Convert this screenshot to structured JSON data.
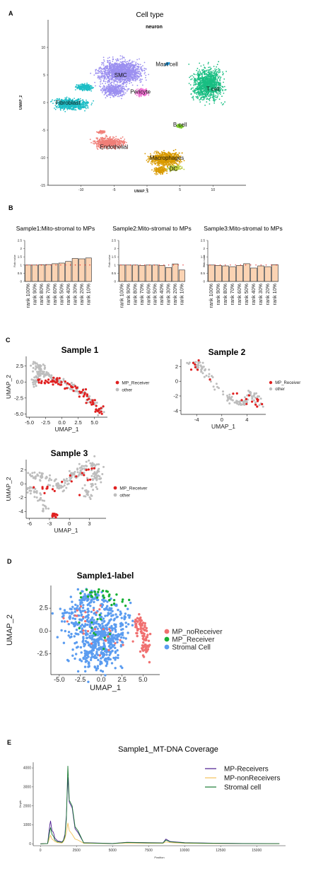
{
  "panels": {
    "a": "A",
    "b": "B",
    "c": "C",
    "d": "D",
    "e": "E"
  },
  "colors": {
    "smc": "#9b8ff0",
    "fibroblast": "#1ebec6",
    "tcell": "#19be82",
    "endothelial": "#f07f78",
    "macrophages": "#d99a00",
    "pericyte": "#ee6fd0",
    "mastcell": "#1e8fcf",
    "bcell": "#7bc92a",
    "dc": "#b7c93a",
    "bar": "#fbd3b3",
    "red": "#e02020",
    "grey": "#bdbdbd",
    "noreceiver": "#f07070",
    "receiver": "#16b034",
    "stromal": "#5b9cf0",
    "mp_receivers": "#4b1a90",
    "mp_noreceivers": "#f2c05a",
    "stromal_cell": "#1a7a33"
  },
  "chart_data": [
    {
      "type": "scatter",
      "title": "Cell type",
      "subtitle": "neuron",
      "xlabel": "UMAP_1",
      "ylabel": "UMAP_2",
      "xlim": [
        -15,
        15
      ],
      "ylim": [
        -15,
        15
      ],
      "xticks": [
        -10,
        -5,
        0,
        5,
        10
      ],
      "yticks": [
        10,
        5,
        0,
        -5,
        -10,
        -15
      ],
      "clusters": [
        {
          "name": "SMC",
          "x": -4,
          "y": 5
        },
        {
          "name": "Fibroblast",
          "x": -12,
          "y": 0
        },
        {
          "name": "T cell",
          "x": 10,
          "y": 2.5
        },
        {
          "name": "Pericyte",
          "x": -1,
          "y": 2
        },
        {
          "name": "Mast cell",
          "x": 3,
          "y": 7
        },
        {
          "name": "B cell",
          "x": 5,
          "y": -4
        },
        {
          "name": "Endothelial",
          "x": -5,
          "y": -8
        },
        {
          "name": "Macrophages",
          "x": 3,
          "y": -10
        },
        {
          "name": "DC",
          "x": 4,
          "y": -12
        }
      ]
    },
    {
      "type": "bar",
      "title": "Sample1:Mito-stromal to MPs",
      "ylabel": "Ratio value",
      "ylim": [
        0,
        2.5
      ],
      "yticks": [
        0,
        0.5,
        1,
        1.5,
        2,
        2.5
      ],
      "categories": [
        "rank 100%",
        "rank 90%",
        "rank 80%",
        "rank 70%",
        "rank 60%",
        "rank 50%",
        "rank 40%",
        "rank 30%",
        "rank 20%",
        "rank 10%"
      ],
      "values": [
        1.0,
        1.0,
        1.02,
        1.03,
        1.08,
        1.12,
        1.22,
        1.4,
        1.38,
        1.43
      ],
      "reference": 1.0
    },
    {
      "type": "bar",
      "title": "Sample2:Mito-stromal to MPs",
      "ylabel": "Ratio value",
      "ylim": [
        0,
        2.5
      ],
      "yticks": [
        0,
        0.5,
        1,
        1.5,
        2,
        2.5
      ],
      "categories": [
        "rank 100%",
        "rank 90%",
        "rank 80%",
        "rank 70%",
        "rank 60%",
        "rank 50%",
        "rank 40%",
        "rank 30%",
        "rank 20%",
        "rank 10%"
      ],
      "values": [
        1.0,
        1.0,
        1.0,
        0.98,
        1.0,
        1.0,
        0.98,
        0.85,
        1.07,
        0.7
      ],
      "reference": 1.0
    },
    {
      "type": "bar",
      "title": "Sample3:Mito-stromal to MPs",
      "ylabel": "Ratio value",
      "ylim": [
        0,
        2.5
      ],
      "yticks": [
        0,
        0.5,
        1,
        1.5,
        2,
        2.5
      ],
      "categories": [
        "rank 100%",
        "rank 90%",
        "rank 80%",
        "rank 70%",
        "rank 60%",
        "rank 50%",
        "rank 40%",
        "rank 30%",
        "rank 20%",
        "rank 10%"
      ],
      "values": [
        1.0,
        0.98,
        0.95,
        0.9,
        0.98,
        1.08,
        0.82,
        0.95,
        0.9,
        1.02
      ],
      "reference": 1.0
    },
    {
      "type": "scatter",
      "title": "Sample 1",
      "xlabel": "UMAP_1",
      "ylabel": "UMAP_2",
      "xlim": [
        -5.5,
        7
      ],
      "ylim": [
        -5.5,
        4
      ],
      "xticks": [
        -5.0,
        -2.5,
        0.0,
        2.5,
        5.0
      ],
      "xtick_labels": [
        "-5.0",
        "-2.5",
        "0.0",
        "2.5",
        "5.0"
      ],
      "yticks": [
        2.5,
        0.0,
        -2.5,
        -5.0
      ],
      "ytick_labels": [
        "2.5",
        "0.0",
        "-2.5",
        "-5.0"
      ],
      "legend": [
        "MP_Receiver",
        "other"
      ]
    },
    {
      "type": "scatter",
      "title": "Sample 2",
      "xlabel": "UMAP_1",
      "ylabel": "",
      "xlim": [
        -6.5,
        7
      ],
      "ylim": [
        -4.5,
        3
      ],
      "xticks": [
        -4,
        0,
        4
      ],
      "xtick_labels": [
        "-4",
        "0",
        "4"
      ],
      "yticks": [
        2,
        0,
        -2,
        -4
      ],
      "ytick_labels": [
        "2",
        "0",
        "-2",
        "-4"
      ],
      "legend": [
        "MP_Receiver",
        "other"
      ]
    },
    {
      "type": "scatter",
      "title": "Sample 3",
      "xlabel": "UMAP_1",
      "ylabel": "UMAP_2",
      "xlim": [
        -6.5,
        5.5
      ],
      "ylim": [
        -5,
        3.5
      ],
      "xticks": [
        -6,
        -3,
        0,
        3
      ],
      "xtick_labels": [
        "-6",
        "-3",
        "0",
        "3"
      ],
      "yticks": [
        2,
        0,
        -2,
        -4
      ],
      "ytick_labels": [
        "2",
        "0",
        "-2",
        "-4"
      ],
      "legend": [
        "MP_Receiver",
        "other"
      ]
    },
    {
      "type": "scatter",
      "title": "Sample1-label",
      "xlabel": "UMAP_1",
      "ylabel": "UMAP_2",
      "xlim": [
        -6,
        7
      ],
      "ylim": [
        -4.8,
        5
      ],
      "xticks": [
        -5.0,
        -2.5,
        0.0,
        2.5,
        5.0
      ],
      "xtick_labels": [
        "-5.0",
        "-2.5",
        "0.0",
        "2.5",
        "5.0"
      ],
      "yticks": [
        2.5,
        0.0,
        -2.5
      ],
      "ytick_labels": [
        "2.5",
        "0.0",
        "-2.5"
      ],
      "legend": [
        "MP_noReceiver",
        "MP_Receiver",
        "Stromal Cell"
      ]
    },
    {
      "type": "line",
      "title": "Sample1_MT-DNA Coverage",
      "xlabel": "Position",
      "ylabel": "Depth",
      "xlim": [
        -500,
        17000
      ],
      "ylim": [
        -100,
        4300
      ],
      "xticks": [
        0,
        2500,
        5000,
        7500,
        10000,
        12500,
        15000
      ],
      "yticks": [
        0,
        1000,
        2000,
        3000,
        4000
      ],
      "series": [
        {
          "name": "MP-Receivers",
          "x": [
            0,
            500,
            650,
            700,
            800,
            900,
            1000,
            1200,
            1500,
            1600,
            1700,
            1800,
            1900,
            2000,
            2200,
            2400,
            2600,
            3000,
            5000,
            6000,
            7500,
            8500,
            8700,
            9000,
            10000,
            12000,
            14000,
            16569
          ],
          "y": [
            0,
            20,
            1000,
            1200,
            700,
            600,
            300,
            150,
            100,
            200,
            500,
            1500,
            3500,
            2200,
            1900,
            800,
            600,
            60,
            20,
            80,
            60,
            50,
            250,
            120,
            60,
            30,
            20,
            10
          ]
        },
        {
          "name": "MP-nonReceivers",
          "x": [
            0,
            500,
            650,
            700,
            800,
            900,
            1000,
            1200,
            1500,
            1600,
            1700,
            1800,
            1900,
            2000,
            2200,
            2400,
            2600,
            3000,
            5000,
            6000,
            7500,
            8500,
            8700,
            9000,
            10000,
            12000,
            14000,
            16569
          ],
          "y": [
            0,
            10,
            350,
            450,
            250,
            200,
            120,
            60,
            40,
            120,
            300,
            600,
            1100,
            700,
            500,
            250,
            200,
            30,
            10,
            40,
            30,
            30,
            100,
            60,
            30,
            15,
            10,
            5
          ]
        },
        {
          "name": "Stromal  cell",
          "x": [
            0,
            500,
            650,
            700,
            800,
            900,
            1000,
            1200,
            1500,
            1600,
            1700,
            1800,
            1900,
            2000,
            2200,
            2400,
            2600,
            3000,
            5000,
            6000,
            7500,
            8500,
            8700,
            9000,
            10000,
            12000,
            14000,
            16569
          ],
          "y": [
            0,
            15,
            700,
            850,
            500,
            400,
            200,
            100,
            80,
            180,
            400,
            1300,
            4100,
            2300,
            2000,
            900,
            700,
            50,
            15,
            70,
            50,
            40,
            200,
            100,
            50,
            25,
            15,
            8
          ]
        }
      ]
    }
  ]
}
